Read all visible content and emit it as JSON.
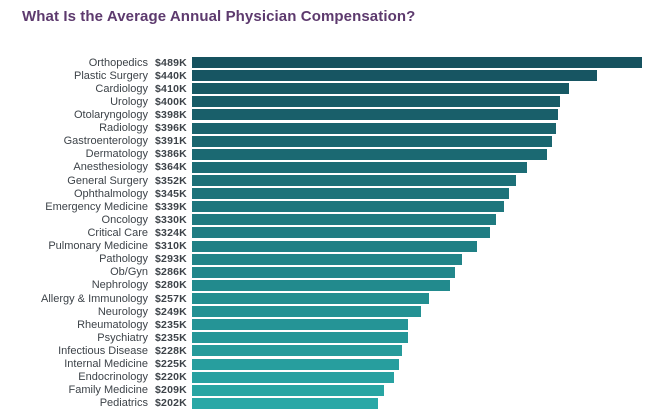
{
  "page": {
    "background_color": "#ffffff"
  },
  "chart_data": {
    "type": "bar",
    "orientation": "horizontal",
    "title": "What Is the Average Annual Physician Compensation?",
    "title_color": "#5d3a6e",
    "xlabel": "",
    "ylabel": "",
    "xlim": [
      0,
      489
    ],
    "grid": false,
    "legend": "none",
    "value_unit": "USD thousands per year",
    "label_color": "#3d4349",
    "bar_color_start": "#16525f",
    "bar_color_end": "#29a8a6",
    "categories": [
      "Orthopedics",
      "Plastic Surgery",
      "Cardiology",
      "Urology",
      "Otolaryngology",
      "Radiology",
      "Gastroenterology",
      "Dermatology",
      "Anesthesiology",
      "General Surgery",
      "Ophthalmology",
      "Emergency Medicine",
      "Oncology",
      "Critical Care",
      "Pulmonary Medicine",
      "Pathology",
      "Ob/Gyn",
      "Nephrology",
      "Allergy & Immunology",
      "Neurology",
      "Rheumatology",
      "Psychiatry",
      "Infectious Disease",
      "Internal Medicine",
      "Endocrinology",
      "Family Medicine",
      "Pediatrics"
    ],
    "values": [
      489,
      440,
      410,
      400,
      398,
      396,
      391,
      386,
      364,
      352,
      345,
      339,
      330,
      324,
      310,
      293,
      286,
      280,
      257,
      249,
      235,
      235,
      228,
      225,
      220,
      209,
      202
    ],
    "value_labels": [
      "$489K",
      "$440K",
      "$410K",
      "$400K",
      "$398K",
      "$396K",
      "$391K",
      "$386K",
      "$364K",
      "$352K",
      "$345K",
      "$339K",
      "$330K",
      "$324K",
      "$310K",
      "$293K",
      "$286K",
      "$280K",
      "$257K",
      "$249K",
      "$235K",
      "$235K",
      "$228K",
      "$225K",
      "$220K",
      "$209K",
      "$202K"
    ]
  }
}
